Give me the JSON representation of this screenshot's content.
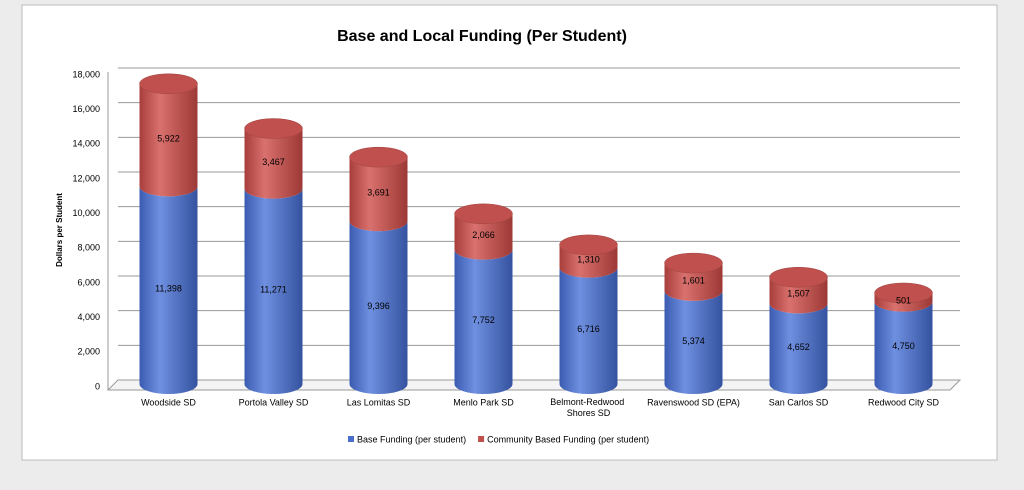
{
  "chart_data": {
    "type": "bar",
    "stacked": true,
    "title": "Base and Local Funding (Per Student)",
    "y_label": "Dollars per Student",
    "categories": [
      "Woodside SD",
      "Portola Valley SD",
      "Las Lomitas SD",
      "Menlo Park SD",
      "Belmont-Redwood Shores SD",
      "Ravenswood SD (EPA)",
      "San Carlos SD",
      "Redwood City SD"
    ],
    "series": [
      {
        "name": "Base Funding (per student)",
        "color": "#4a6ecb",
        "values": [
          11398,
          11271,
          9396,
          7752,
          6716,
          5374,
          4652,
          4750
        ],
        "value_labels": [
          "11,398",
          "11,271",
          "9,396",
          "7,752",
          "6,716",
          "5,374",
          "4,652",
          "4,750"
        ]
      },
      {
        "name": "Community Based Funding (per student)",
        "color": "#c0504d",
        "values": [
          5922,
          3467,
          3691,
          2066,
          1310,
          1601,
          1507,
          501
        ],
        "value_labels": [
          "5,922",
          "3,467",
          "3,691",
          "2,066",
          "1,310",
          "1,601",
          "1,507",
          "501"
        ]
      }
    ],
    "ylim": [
      0,
      18000
    ],
    "yticks": [
      0,
      {
        "value": 2000,
        "label": "2,000"
      },
      {
        "value": 4000,
        "label": "4,000"
      },
      {
        "value": 6000,
        "label": "6,000"
      },
      {
        "value": 8000,
        "label": "8,000"
      },
      {
        "value": 10000,
        "label": "10,000"
      },
      {
        "value": 12000,
        "label": "12,000"
      },
      {
        "value": 14000,
        "label": "14,000"
      },
      {
        "value": 16000,
        "label": "16,000"
      },
      {
        "value": 18000,
        "label": "18,000"
      }
    ],
    "grid": true,
    "legend": "bottom"
  }
}
